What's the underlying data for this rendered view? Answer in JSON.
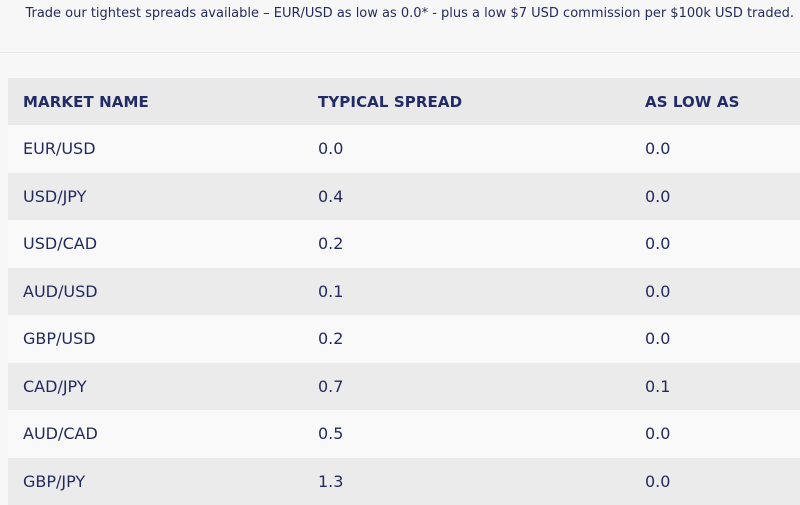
{
  "intro": {
    "text": "Trade our tightest spreads available – EUR/USD as low as 0.0* - plus a low $7 USD commission per $100k USD traded."
  },
  "table": {
    "headers": [
      "MARKET NAME",
      "TYPICAL SPREAD",
      "AS LOW AS"
    ],
    "rows": [
      [
        "EUR/USD",
        "0.0",
        "0.0"
      ],
      [
        "USD/JPY",
        "0.4",
        "0.0"
      ],
      [
        "USD/CAD",
        "0.2",
        "0.0"
      ],
      [
        "AUD/USD",
        "0.1",
        "0.0"
      ],
      [
        "GBP/USD",
        "0.2",
        "0.0"
      ],
      [
        "CAD/JPY",
        "0.7",
        "0.1"
      ],
      [
        "AUD/CAD",
        "0.5",
        "0.0"
      ],
      [
        "GBP/JPY",
        "1.3",
        "0.0"
      ]
    ]
  }
}
